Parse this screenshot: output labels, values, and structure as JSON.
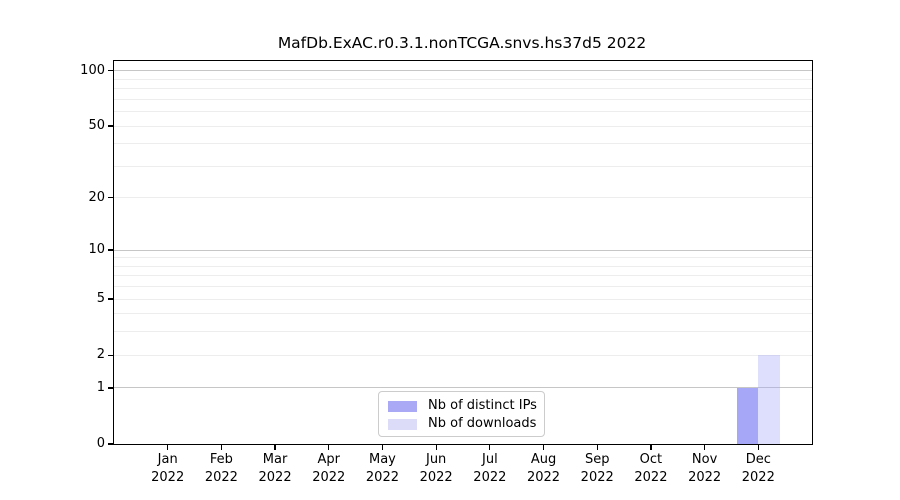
{
  "chart_data": {
    "type": "bar",
    "title": "MafDb.ExAC.r0.3.1.nonTCGA.snvs.hs37d5 2022",
    "categories": [
      "Jan",
      "Feb",
      "Mar",
      "Apr",
      "May",
      "Jun",
      "Jul",
      "Aug",
      "Sep",
      "Oct",
      "Nov",
      "Dec"
    ],
    "year_label": "2022",
    "series": [
      {
        "name": "Nb of distinct IPs",
        "values": [
          0,
          0,
          0,
          0,
          0,
          0,
          0,
          0,
          0,
          0,
          0,
          1
        ],
        "color": "#a9a9f6",
        "fill": "rgba(135,135,245,0.73)"
      },
      {
        "name": "Nb of downloads",
        "values": [
          0,
          0,
          0,
          0,
          0,
          0,
          0,
          0,
          0,
          0,
          0,
          2
        ],
        "color": "#dcdcf8",
        "fill": "rgba(160,160,250,0.35)"
      }
    ],
    "yticks": [
      {
        "label": "0",
        "value": 0
      },
      {
        "label": "1",
        "value": 1
      },
      {
        "label": "2",
        "value": 2
      },
      {
        "label": "5",
        "value": 5
      },
      {
        "label": "10",
        "value": 10
      },
      {
        "label": "20",
        "value": 20
      },
      {
        "label": "50",
        "value": 50
      },
      {
        "label": "100",
        "value": 100
      }
    ],
    "scale": "log1p",
    "ylim": [
      0,
      113
    ],
    "gridlines": {
      "major_values": [
        1,
        10,
        100
      ],
      "minor_values": [
        2,
        3,
        4,
        5,
        6,
        7,
        8,
        9,
        20,
        30,
        40,
        50,
        60,
        70,
        80,
        90
      ],
      "major_color": "#c6c6c6",
      "minor_color": "#ededed"
    },
    "legend_position": "lower center",
    "xlabel": "",
    "ylabel": ""
  },
  "legend": {
    "items": [
      {
        "label": "Nb of distinct IPs"
      },
      {
        "label": "Nb of downloads"
      }
    ]
  }
}
